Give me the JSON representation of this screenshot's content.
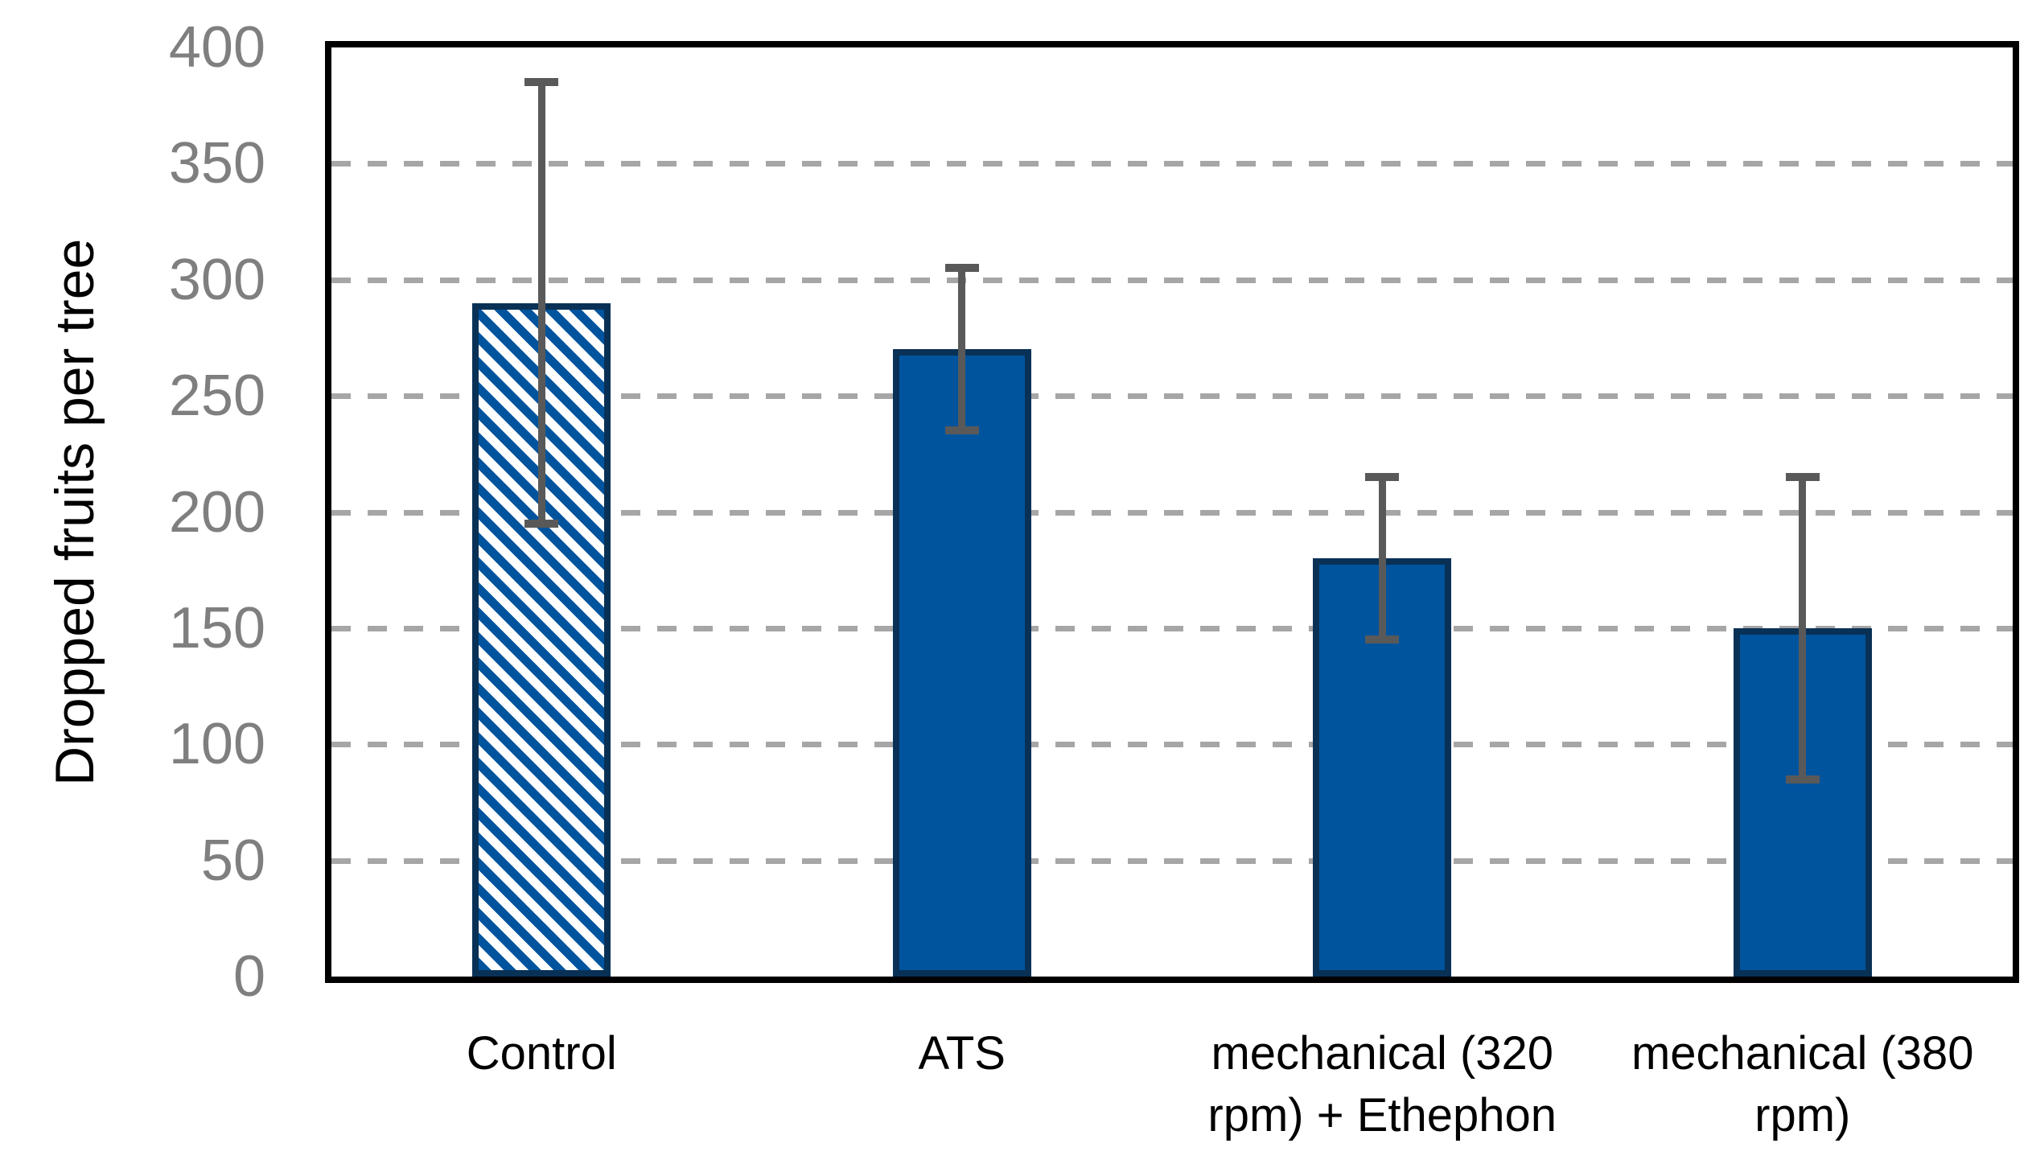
{
  "chart_data": {
    "type": "bar",
    "title": "",
    "ylabel": "Dropped fruits per tree",
    "xlabel": "",
    "categories": [
      "Control",
      "ATS",
      "mechanical (320 rpm) + Ethephon",
      "mechanical (380 rpm)"
    ],
    "values": [
      290,
      270,
      180,
      150
    ],
    "error_bars": {
      "upper": [
        385,
        305,
        215,
        215
      ],
      "lower": [
        195,
        235,
        145,
        85
      ]
    },
    "ylim": [
      0,
      400
    ],
    "ytick_step": 50,
    "ytick_labels": [
      "400",
      "350",
      "300",
      "250",
      "200",
      "150",
      "100",
      "50",
      "0"
    ],
    "grid": "horizontal-dashed",
    "legend": "none",
    "bar_styles": [
      "hatched-diagonal",
      "solid",
      "solid",
      "solid"
    ],
    "colors": {
      "bar_fill": "#00549e",
      "bar_border": "#093156",
      "hatch_background": "#ffffff",
      "error_bar": "#595959",
      "gridline": "#a6a6a6",
      "tick_text": "#7f7f7f",
      "label_text": "#000000",
      "frame": "#000000"
    }
  }
}
